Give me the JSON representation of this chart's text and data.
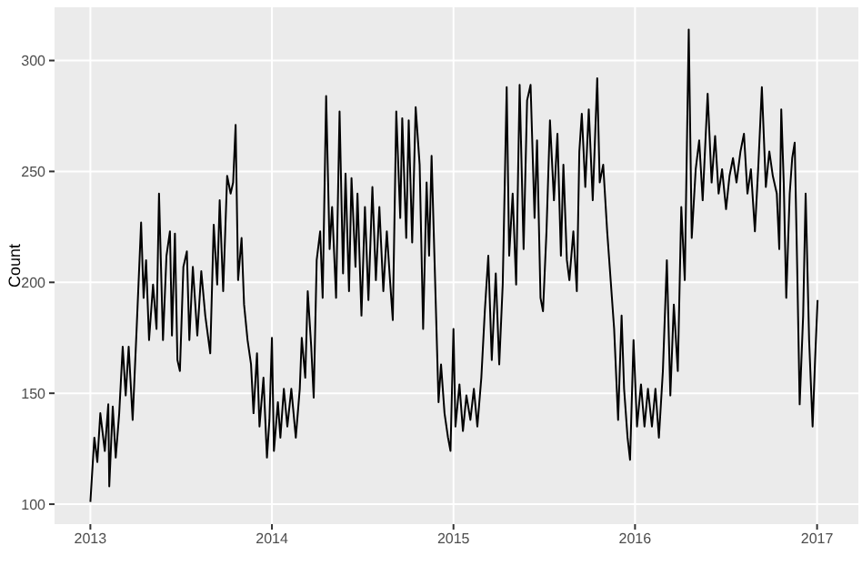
{
  "chart_data": {
    "type": "line",
    "ylabel": "Count",
    "grid": true,
    "marker": "none",
    "line_style": "solid",
    "xlim": [
      "2012-10-21",
      "2017-03-25"
    ],
    "xticks": [
      "2013",
      "2014",
      "2015",
      "2016",
      "2017"
    ],
    "ylim": [
      91,
      324
    ],
    "yticks": [
      100,
      150,
      200,
      250,
      300
    ],
    "x": [
      "2013-01-01",
      "2013-01-09",
      "2013-01-15",
      "2013-01-21",
      "2013-01-30",
      "2013-02-06",
      "2013-02-08",
      "2013-02-15",
      "2013-02-21",
      "2013-02-28",
      "2013-03-07",
      "2013-03-13",
      "2013-03-19",
      "2013-03-27",
      "2013-04-04",
      "2013-04-13",
      "2013-04-18",
      "2013-04-23",
      "2013-04-29",
      "2013-05-07",
      "2013-05-14",
      "2013-05-19",
      "2013-05-27",
      "2013-06-03",
      "2013-06-10",
      "2013-06-14",
      "2013-06-20",
      "2013-06-25",
      "2013-06-30",
      "2013-07-07",
      "2013-07-14",
      "2013-07-19",
      "2013-07-26",
      "2013-08-04",
      "2013-08-12",
      "2013-08-20",
      "2013-08-30",
      "2013-09-06",
      "2013-09-13",
      "2013-09-18",
      "2013-09-25",
      "2013-10-03",
      "2013-10-10",
      "2013-10-15",
      "2013-10-20",
      "2013-10-25",
      "2013-11-01",
      "2013-11-06",
      "2013-11-13",
      "2013-11-20",
      "2013-11-25",
      "2013-12-02",
      "2013-12-07",
      "2013-12-15",
      "2013-12-22",
      "2013-12-27",
      "2014-01-01",
      "2014-01-05",
      "2014-01-13",
      "2014-01-18",
      "2014-01-25",
      "2014-02-01",
      "2014-02-09",
      "2014-02-18",
      "2014-02-26",
      "2014-03-02",
      "2014-03-09",
      "2014-03-14",
      "2014-03-21",
      "2014-03-26",
      "2014-04-01",
      "2014-04-08",
      "2014-04-13",
      "2014-04-20",
      "2014-04-27",
      "2014-05-02",
      "2014-05-10",
      "2014-05-17",
      "2014-05-24",
      "2014-05-29",
      "2014-06-05",
      "2014-06-10",
      "2014-06-18",
      "2014-06-22",
      "2014-06-30",
      "2014-07-07",
      "2014-07-14",
      "2014-07-22",
      "2014-07-29",
      "2014-08-05",
      "2014-08-13",
      "2014-08-20",
      "2014-08-27",
      "2014-09-01",
      "2014-09-08",
      "2014-09-16",
      "2014-09-20",
      "2014-09-28",
      "2014-10-03",
      "2014-10-10",
      "2014-10-17",
      "2014-10-25",
      "2014-11-01",
      "2014-11-08",
      "2014-11-13",
      "2014-11-18",
      "2014-12-02",
      "2014-12-07",
      "2014-12-14",
      "2014-12-21",
      "2014-12-26",
      "2015-01-01",
      "2015-01-05",
      "2015-01-13",
      "2015-01-20",
      "2015-01-27",
      "2015-02-04",
      "2015-02-11",
      "2015-02-18",
      "2015-02-26",
      "2015-03-05",
      "2015-03-12",
      "2015-03-19",
      "2015-03-27",
      "2015-04-03",
      "2015-04-10",
      "2015-04-18",
      "2015-04-23",
      "2015-04-30",
      "2015-05-07",
      "2015-05-14",
      "2015-05-22",
      "2015-05-29",
      "2015-06-05",
      "2015-06-13",
      "2015-06-18",
      "2015-06-25",
      "2015-06-30",
      "2015-07-07",
      "2015-07-14",
      "2015-07-22",
      "2015-07-29",
      "2015-08-05",
      "2015-08-10",
      "2015-08-17",
      "2015-08-22",
      "2015-08-30",
      "2015-09-06",
      "2015-09-11",
      "2015-09-16",
      "2015-09-23",
      "2015-09-30",
      "2015-10-08",
      "2015-10-17",
      "2015-10-22",
      "2015-10-29",
      "2015-11-06",
      "2015-11-13",
      "2015-11-20",
      "2015-11-28",
      "2015-12-05",
      "2015-12-10",
      "2015-12-17",
      "2015-12-22",
      "2015-12-29",
      "2016-01-05",
      "2016-01-13",
      "2016-01-20",
      "2016-01-27",
      "2016-02-04",
      "2016-02-11",
      "2016-02-18",
      "2016-02-26",
      "2016-03-05",
      "2016-03-12",
      "2016-03-19",
      "2016-03-27",
      "2016-04-03",
      "2016-04-10",
      "2016-04-18",
      "2016-04-24",
      "2016-05-02",
      "2016-05-09",
      "2016-05-16",
      "2016-05-26",
      "2016-06-03",
      "2016-06-10",
      "2016-06-17",
      "2016-06-24",
      "2016-07-02",
      "2016-07-09",
      "2016-07-16",
      "2016-07-23",
      "2016-07-31",
      "2016-08-07",
      "2016-08-14",
      "2016-08-21",
      "2016-08-29",
      "2016-09-05",
      "2016-09-12",
      "2016-09-20",
      "2016-09-27",
      "2016-10-04",
      "2016-10-12",
      "2016-10-17",
      "2016-10-21",
      "2016-10-26",
      "2016-10-31",
      "2016-11-07",
      "2016-11-12",
      "2016-11-17",
      "2016-11-22",
      "2016-11-27",
      "2016-12-04",
      "2016-12-09",
      "2016-12-16",
      "2016-12-23",
      "2016-12-28",
      "2017-01-02"
    ],
    "series": [
      {
        "color": "#000000",
        "values": [
          101,
          130,
          119,
          141,
          124,
          145,
          108,
          144,
          121,
          141,
          171,
          149,
          171,
          138,
          179,
          227,
          193,
          210,
          174,
          199,
          179,
          240,
          174,
          212,
          223,
          176,
          222,
          165,
          160,
          207,
          214,
          174,
          207,
          176,
          205,
          185,
          168,
          226,
          199,
          237,
          196,
          248,
          240,
          245,
          271,
          201,
          220,
          190,
          174,
          163,
          141,
          168,
          135,
          157,
          121,
          138,
          175,
          124,
          146,
          130,
          152,
          135,
          152,
          130,
          152,
          175,
          157,
          196,
          171,
          148,
          210,
          223,
          193,
          284,
          215,
          234,
          193,
          277,
          204,
          249,
          196,
          247,
          207,
          240,
          185,
          234,
          192,
          243,
          201,
          234,
          196,
          223,
          199,
          183,
          277,
          229,
          274,
          220,
          273,
          218,
          279,
          253,
          179,
          245,
          212,
          257,
          146,
          163,
          141,
          130,
          124,
          179,
          135,
          154,
          133,
          149,
          138,
          152,
          135,
          157,
          187,
          212,
          165,
          204,
          163,
          199,
          288,
          212,
          240,
          199,
          289,
          215,
          282,
          289,
          229,
          264,
          193,
          187,
          223,
          273,
          237,
          267,
          212,
          253,
          210,
          201,
          223,
          196,
          259,
          276,
          243,
          278,
          237,
          292,
          245,
          253,
          223,
          201,
          179,
          138,
          185,
          152,
          130,
          120,
          174,
          135,
          154,
          135,
          152,
          135,
          152,
          130,
          160,
          210,
          149,
          190,
          160,
          234,
          201,
          314,
          220,
          251,
          264,
          237,
          285,
          245,
          266,
          240,
          251,
          233,
          248,
          256,
          245,
          259,
          267,
          240,
          251,
          223,
          253,
          288,
          243,
          259,
          248,
          240,
          215,
          278,
          245,
          193,
          240,
          256,
          263,
          207,
          145,
          185,
          240,
          174,
          135,
          165,
          192
        ]
      }
    ]
  }
}
